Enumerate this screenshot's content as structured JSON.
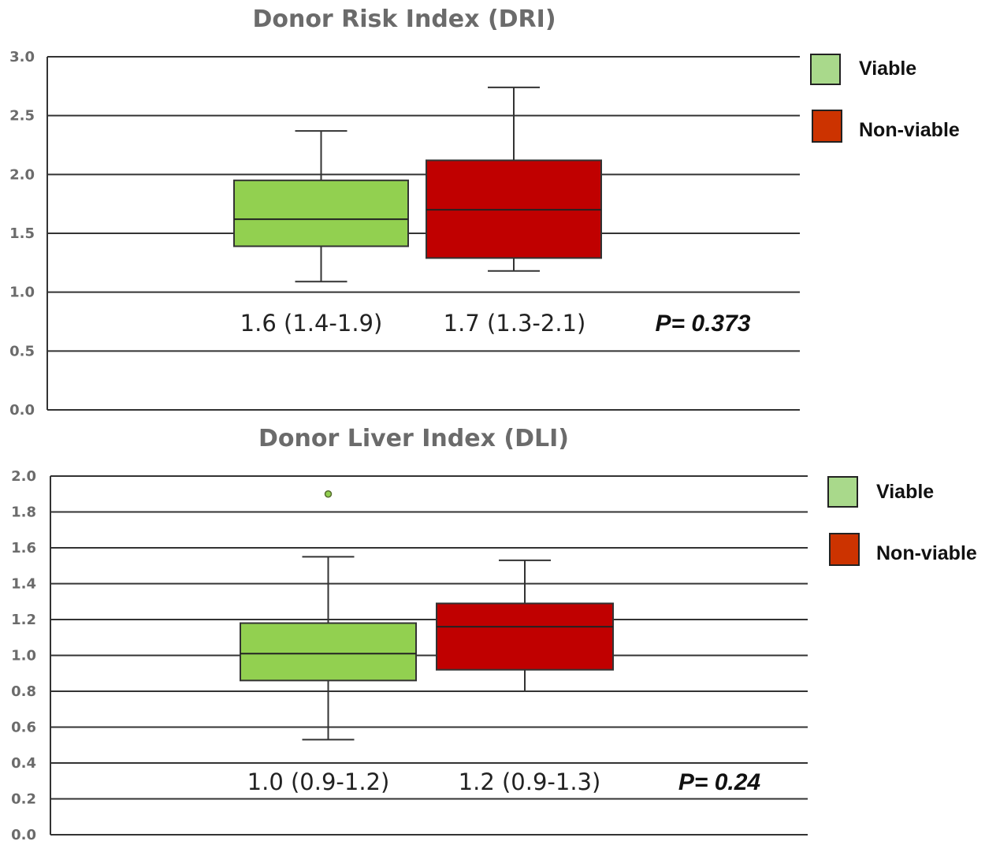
{
  "colors": {
    "viable": "#92d050",
    "non_viable": "#c00000",
    "legend_viable": "#a9d98b",
    "legend_non_viable": "#cc3300",
    "grid": "#333333",
    "title": "#6b6b6b",
    "outlier": "#92d050"
  },
  "chart_data": [
    {
      "type": "box",
      "title": "Donor Risk Index (DRI)",
      "ylim": [
        0.0,
        3.0
      ],
      "yticks": [
        "0.0",
        "0.5",
        "1.0",
        "1.5",
        "2.0",
        "2.5",
        "3.0"
      ],
      "grid": true,
      "legend_position": "top-right",
      "legend": [
        "Viable",
        "Non-viable"
      ],
      "series": [
        {
          "name": "Viable",
          "whisker_low": 1.09,
          "q1": 1.39,
          "median": 1.62,
          "q3": 1.95,
          "whisker_high": 2.37,
          "outliers": [],
          "label": "1.6 (1.4-1.9)"
        },
        {
          "name": "Non-viable",
          "whisker_low": 1.18,
          "q1": 1.29,
          "median": 1.7,
          "q3": 2.12,
          "whisker_high": 2.74,
          "outliers": [],
          "label": "1.7 (1.3-2.1)"
        }
      ],
      "p_value": "P= 0.373"
    },
    {
      "type": "box",
      "title": "Donor Liver Index (DLI)",
      "ylim": [
        0.0,
        2.0
      ],
      "yticks": [
        "0.0",
        "0.2",
        "0.4",
        "0.6",
        "0.8",
        "1.0",
        "1.2",
        "1.4",
        "1.6",
        "1.8",
        "2.0"
      ],
      "grid": true,
      "legend_position": "top-right",
      "legend": [
        "Viable",
        "Non-viable"
      ],
      "series": [
        {
          "name": "Viable",
          "whisker_low": 0.53,
          "q1": 0.86,
          "median": 1.01,
          "q3": 1.18,
          "whisker_high": 1.55,
          "outliers": [
            1.9
          ],
          "label": "1.0 (0.9-1.2)"
        },
        {
          "name": "Non-viable",
          "whisker_low": 0.8,
          "q1": 0.92,
          "median": 1.16,
          "q3": 1.29,
          "whisker_high": 1.53,
          "outliers": [],
          "label": "1.2 (0.9-1.3)"
        }
      ],
      "p_value": "P= 0.24"
    }
  ]
}
